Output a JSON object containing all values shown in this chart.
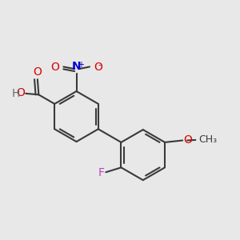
{
  "bg_color": "#e8e8e8",
  "bond_color": "#3a3a3a",
  "bond_width": 1.5,
  "atom_colors": {
    "O": "#dd0000",
    "N": "#0000cc",
    "F": "#bb44bb",
    "C_gray": "#607070",
    "black": "#3a3a3a"
  },
  "font_size": 10,
  "font_size_small": 9,
  "font_size_charge": 7
}
